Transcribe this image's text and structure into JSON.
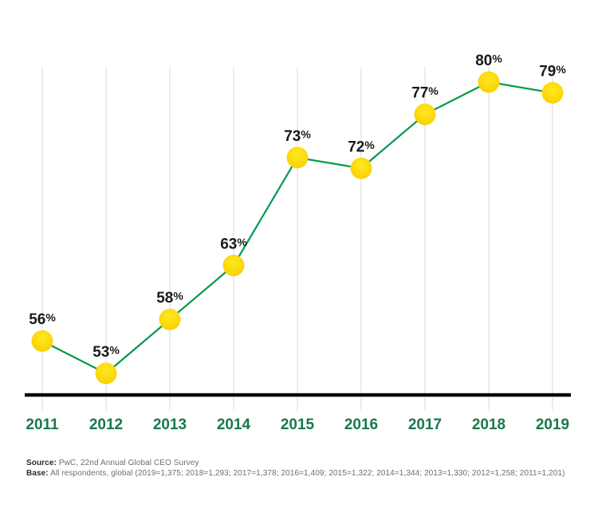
{
  "chart_data": {
    "type": "line",
    "categories": [
      "2011",
      "2012",
      "2013",
      "2014",
      "2015",
      "2016",
      "2017",
      "2018",
      "2019"
    ],
    "values": [
      56,
      53,
      58,
      63,
      73,
      72,
      77,
      80,
      79
    ],
    "data_labels": [
      "56%",
      "53%",
      "58%",
      "63%",
      "73%",
      "72%",
      "77%",
      "80%",
      "79%"
    ],
    "value_suffix": "%",
    "title": "",
    "xlabel": "",
    "ylabel": "",
    "ylim": [
      51,
      81.4
    ],
    "grid": "vertical-only",
    "legend": "none"
  },
  "colors": {
    "line": "#009a4e",
    "marker_top": "#ffe920",
    "marker_bottom": "#f8ce00",
    "gridline": "#e7e7e7",
    "axis": "#000000",
    "year_label": "#17794a",
    "data_label": "#1a1a1a",
    "footer_text": "#6d6e71",
    "footer_bold": "#2b2b2b"
  },
  "footer": {
    "source_label": "Source:",
    "source_text": "PwC, 22nd Annual Global CEO Survey",
    "base_label": "Base:",
    "base_text": "All respondents, global (2019=1,375; 2018=1,293; 2017=1,378; 2016=1,409; 2015=1,322; 2014=1,344; 2013=1,330; 2012=1,258; 2011=1,201)"
  }
}
